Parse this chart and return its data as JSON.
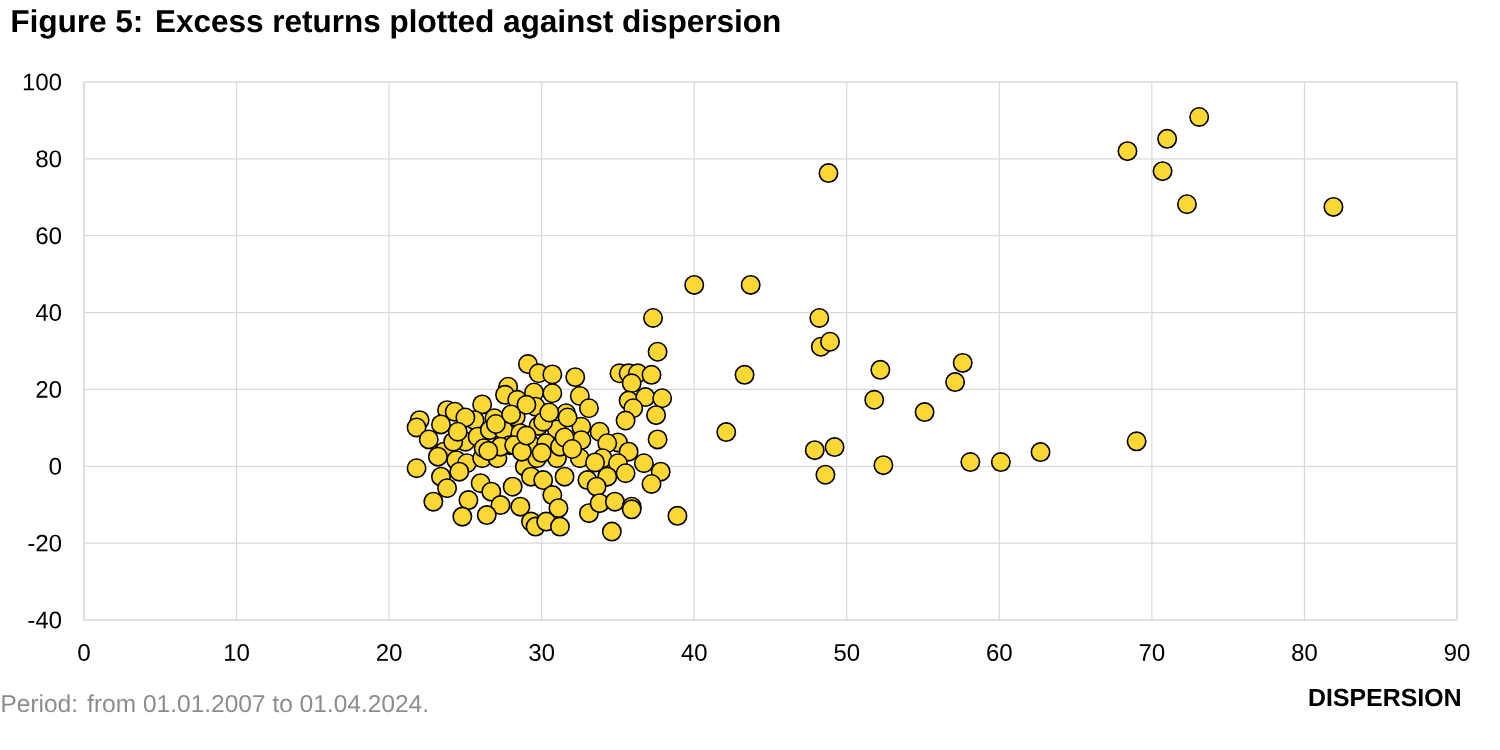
{
  "chart_data": {
    "type": "scatter",
    "title": "Figure 5: Excess returns plotted against dispersion",
    "xlabel": "DISPERSION",
    "annotations": [
      "Period: from 01.01.2007 to 01.04.2024."
    ],
    "x": [
      37.6,
      29.1,
      29.8,
      30.7,
      32.2,
      35.1,
      35.7,
      36.3,
      37.2,
      35.9,
      27.8,
      27.6,
      29.5,
      30.7,
      32.5,
      35.7,
      36.8,
      37.9,
      36.0,
      35.5,
      37.5,
      33.1,
      31.6,
      23.8,
      24.3,
      26.1,
      25.6,
      26.9,
      28.3,
      29.6,
      28.4,
      29.0,
      22.0,
      21.8,
      23.4,
      22.6,
      25.0,
      25.0,
      25.8,
      26.6,
      27.5,
      27.9,
      28.6,
      29.8,
      31.0,
      30.1,
      32.6,
      33.8,
      32.6,
      31.7,
      37.6,
      35.0,
      34.3,
      35.7,
      23.6,
      23.2,
      24.4,
      25.1,
      26.1,
      27.1,
      28.9,
      29.7,
      31.0,
      32.5,
      34.0,
      35.0,
      36.7,
      35.5,
      34.3,
      37.8,
      37.2,
      21.8,
      23.4,
      24.6,
      26.0,
      26.7,
      28.1,
      29.3,
      30.1,
      31.5,
      33.0,
      33.6,
      23.8,
      22.9,
      25.2,
      27.3,
      28.6,
      30.7,
      31.1,
      33.1,
      33.8,
      34.8,
      35.9,
      24.8,
      26.4,
      29.3,
      29.6,
      30.3,
      31.2,
      34.6,
      27.3,
      28.2,
      29.2,
      30.3,
      31.2,
      28.7,
      24.2,
      26.2,
      28.0,
      30.5,
      27.0,
      29.0,
      31.5,
      26.5,
      30.0,
      32.0,
      24.5,
      33.5,
      37.3,
      35.9,
      38.9,
      73.1,
      71.0,
      68.4,
      70.7,
      72.3,
      81.9,
      48.8,
      40.0,
      43.7,
      48.2,
      48.3,
      48.9,
      43.3,
      52.2,
      57.6,
      57.1,
      51.8,
      55.1,
      42.1,
      47.9,
      49.2,
      48.6,
      52.4,
      58.1,
      60.1,
      62.7,
      69.0
    ],
    "values": [
      29.8,
      26.6,
      24.2,
      23.9,
      23.2,
      24.2,
      24.2,
      24.2,
      23.8,
      21.6,
      20.7,
      18.6,
      19.2,
      19.0,
      18.3,
      17.1,
      18.0,
      17.7,
      15.1,
      11.9,
      13.3,
      15.1,
      13.8,
      14.6,
      14.2,
      16.1,
      12.0,
      12.5,
      12.9,
      15.5,
      17.3,
      16.0,
      12.0,
      10.1,
      10.9,
      7.0,
      12.7,
      6.4,
      7.7,
      9.4,
      9.4,
      5.5,
      8.6,
      10.5,
      9.6,
      11.6,
      10.3,
      9.0,
      6.8,
      12.7,
      7.0,
      6.2,
      6.0,
      3.8,
      3.8,
      2.5,
      1.6,
      0.8,
      2.1,
      2.1,
      -0.1,
      2.1,
      2.1,
      2.1,
      2.1,
      0.8,
      0.8,
      -1.8,
      -2.7,
      -1.4,
      -4.6,
      -0.5,
      -2.7,
      -1.4,
      -4.4,
      -6.6,
      -5.3,
      -2.7,
      -3.6,
      -2.7,
      -3.6,
      -5.3,
      -5.7,
      -9.2,
      -8.8,
      -10.1,
      -10.5,
      -7.5,
      -10.9,
      -12.2,
      -9.6,
      -9.2,
      -10.5,
      -13.1,
      -12.7,
      -14.4,
      -15.7,
      -14.4,
      -15.7,
      -17.0,
      5.1,
      5.5,
      6.0,
      6.0,
      5.1,
      3.8,
      6.4,
      4.7,
      13.5,
      14.0,
      11.0,
      8.0,
      7.5,
      4.0,
      3.5,
      4.5,
      9.0,
      1.0,
      38.6,
      -11.2,
      -12.9,
      90.9,
      85.2,
      82.0,
      76.8,
      68.2,
      67.5,
      76.3,
      47.2,
      47.2,
      38.6,
      31.1,
      32.4,
      23.8,
      25.1,
      26.9,
      21.9,
      17.3,
      14.1,
      8.9,
      4.2,
      5.0,
      -2.2,
      0.3,
      1.1,
      1.1,
      3.7,
      6.5
    ],
    "color": "#fdd835",
    "marker": "circle",
    "xlim": [
      0,
      90
    ],
    "ylim": [
      -40,
      100
    ],
    "xticks": [
      0,
      10,
      20,
      30,
      40,
      50,
      60,
      70,
      80,
      90
    ],
    "yticks": [
      -40,
      -20,
      0,
      20,
      40,
      60,
      80,
      100
    ],
    "grid": true
  }
}
